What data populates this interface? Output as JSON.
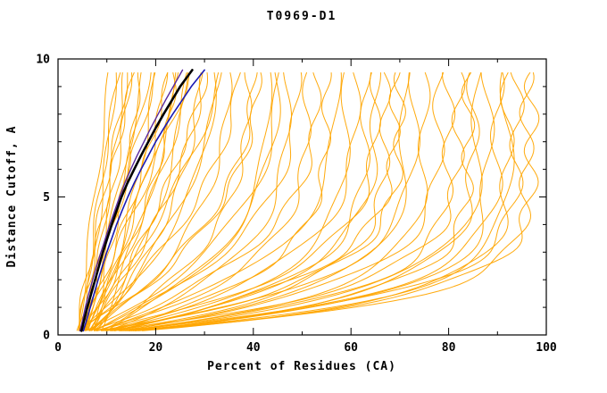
{
  "chart_data": {
    "type": "line",
    "title": "T0969-D1",
    "xlabel": "Percent of Residues (CA)",
    "ylabel": "Distance Cutoff, A",
    "xlim": [
      0,
      100
    ],
    "ylim": [
      0,
      10
    ],
    "xticks_major": [
      0,
      20,
      40,
      60,
      80,
      100
    ],
    "xticks_minor_step": 10,
    "yticks_major": [
      0,
      5,
      10
    ],
    "yticks_minor_step": 1,
    "grid": false,
    "legend": "none",
    "y_draw_range": [
      0.15,
      9.6
    ],
    "colors": {
      "prediction": "#FFA500",
      "highlight_black": "#000000",
      "highlight_blue": "#1A1AB4",
      "highlight_purple": "#5A2A9D",
      "axis": "#000000",
      "background": "#FFFFFF"
    },
    "prediction_curves": [
      [
        4,
        11,
        1.0
      ],
      [
        5,
        12,
        1.2
      ],
      [
        4.5,
        13,
        0.9
      ],
      [
        6,
        14,
        1.1
      ],
      [
        5,
        15,
        1.3
      ],
      [
        4,
        16,
        1.0
      ],
      [
        6.5,
        17,
        1.4
      ],
      [
        5.5,
        18,
        1.1
      ],
      [
        4,
        19,
        1.2
      ],
      [
        7,
        20,
        1.5
      ],
      [
        5,
        21,
        1.0
      ],
      [
        6,
        22,
        1.6
      ],
      [
        4.5,
        23,
        1.3
      ],
      [
        5,
        24,
        1.8
      ],
      [
        6,
        25,
        1.2
      ],
      [
        7,
        26,
        2.0
      ],
      [
        5,
        27,
        1.5
      ],
      [
        4,
        28,
        1.1
      ],
      [
        6,
        29,
        2.2
      ],
      [
        5.5,
        30,
        1.7
      ],
      [
        7,
        31,
        1.3
      ],
      [
        4,
        32,
        2.4
      ],
      [
        6,
        33,
        1.9
      ],
      [
        5,
        34,
        1.4
      ],
      [
        6.5,
        35,
        2.6
      ],
      [
        4,
        37,
        2.0
      ],
      [
        7,
        39,
        3.2
      ],
      [
        5,
        41,
        2.4
      ],
      [
        6,
        43,
        3.6
      ],
      [
        4.5,
        45,
        2.8
      ],
      [
        7,
        47,
        4.0
      ],
      [
        5,
        49,
        3.0
      ],
      [
        6,
        51,
        4.4
      ],
      [
        4,
        53,
        3.4
      ],
      [
        6.5,
        55,
        4.8
      ],
      [
        5,
        57,
        3.8
      ],
      [
        7,
        59,
        5.2
      ],
      [
        5.5,
        61,
        4.2
      ],
      [
        6,
        63,
        5.6
      ],
      [
        4,
        65,
        4.6
      ],
      [
        7,
        67,
        6.0
      ],
      [
        5,
        69,
        5.0
      ],
      [
        6,
        71,
        6.4
      ],
      [
        4.5,
        73,
        5.4
      ],
      [
        7,
        75,
        6.8
      ],
      [
        5,
        78,
        5.8
      ],
      [
        6,
        80,
        7.2
      ],
      [
        4,
        82,
        6.2
      ],
      [
        6.5,
        84,
        7.6
      ],
      [
        5,
        86,
        6.6
      ],
      [
        7,
        88,
        8.0
      ],
      [
        5.5,
        90,
        7.0
      ],
      [
        6,
        92,
        8.4
      ],
      [
        4,
        94,
        7.4
      ],
      [
        6.5,
        96,
        8.8
      ],
      [
        5,
        97,
        8.0
      ],
      [
        8,
        25,
        1.4
      ],
      [
        8,
        45,
        3.0
      ],
      [
        8,
        65,
        5.0
      ],
      [
        8,
        85,
        7.0
      ],
      [
        3.5,
        15,
        1.0
      ],
      [
        3.5,
        40,
        2.5
      ],
      [
        3.5,
        70,
        5.5
      ],
      [
        3.5,
        92,
        8.2
      ]
    ],
    "highlighted_curves": [
      {
        "name": "highlight-purple",
        "color": "#5A2A9D",
        "width": 1.4,
        "y": [
          0.15,
          0.5,
          1,
          1.5,
          2,
          2.5,
          3,
          3.5,
          4,
          4.5,
          5,
          5.5,
          6,
          6.5,
          7,
          7.5,
          8,
          8.5,
          9,
          9.6
        ],
        "x": [
          4.5,
          5,
          5.6,
          6.3,
          7.1,
          7.9,
          8.8,
          9.7,
          10.6,
          11.6,
          12.6,
          13.7,
          14.9,
          16.2,
          17.6,
          19,
          20.5,
          22,
          23.6,
          25.5
        ]
      },
      {
        "name": "highlight-blue",
        "color": "#1A1AB4",
        "width": 1.6,
        "y": [
          0.15,
          0.5,
          1,
          1.5,
          2,
          2.5,
          3,
          3.5,
          4,
          4.5,
          5,
          5.5,
          6,
          6.5,
          7,
          7.5,
          8,
          8.5,
          9,
          9.6
        ],
        "x": [
          5.2,
          5.8,
          6.6,
          7.4,
          8.2,
          9.1,
          10,
          11,
          12,
          13.1,
          14.3,
          15.6,
          17,
          18.5,
          20,
          21.7,
          23.5,
          25.4,
          27.3,
          30
        ]
      },
      {
        "name": "highlight-black",
        "color": "#000000",
        "width": 2.6,
        "y": [
          0.15,
          0.5,
          1,
          1.5,
          2,
          2.5,
          3,
          3.5,
          4,
          4.5,
          5,
          5.5,
          6,
          6.5,
          7,
          7.5,
          8,
          8.5,
          9,
          9.6
        ],
        "x": [
          4.8,
          5.3,
          6,
          6.8,
          7.6,
          8.4,
          9.2,
          10.1,
          11,
          12,
          13,
          14.2,
          15.6,
          17,
          18.5,
          20,
          21.6,
          23.3,
          25,
          27.5
        ]
      }
    ]
  }
}
